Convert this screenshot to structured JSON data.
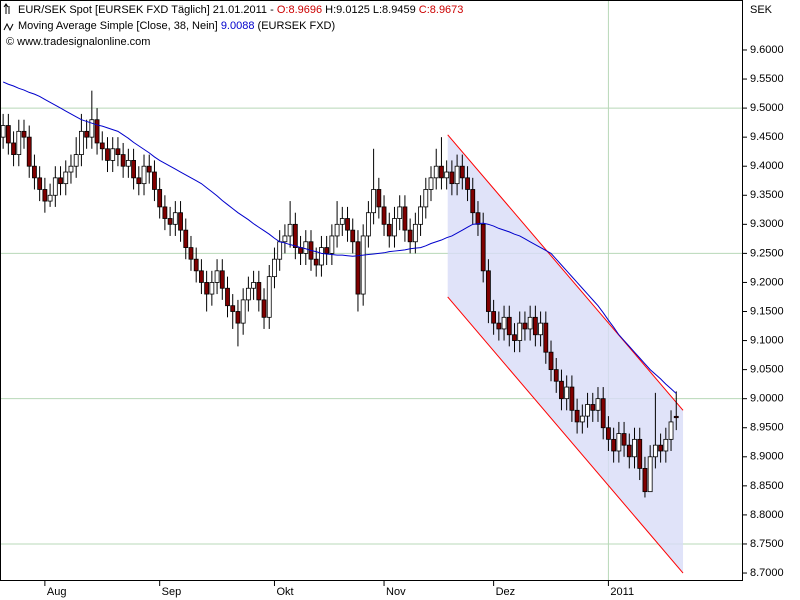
{
  "chart_data": {
    "type": "candlestick",
    "header_line1": "EUR/SEK Spot [EURSEK FXD  Täglich] 21.01.2011 -",
    "header_open": "O:8.9696",
    "header_high_low": "H:9.0125 L:8.9459",
    "header_close": "C:8.9673",
    "ma_label": "Moving Average Simple [Close, 38, Nein]",
    "ma_value": "9.0088",
    "ma_symbol": "(EURSEK FXD)",
    "copyright": "© www.tradesignalonline.com",
    "y_axis_label": "SEK",
    "xlim": [
      -0.6,
      141.6
    ],
    "ylim": [
      8.688,
      9.686
    ],
    "xticks": [
      {
        "value": 8,
        "label": "Aug"
      },
      {
        "value": 30,
        "label": "Sep"
      },
      {
        "value": 52,
        "label": "Okt"
      },
      {
        "value": 73,
        "label": "Nov"
      },
      {
        "value": 94,
        "label": "Dez"
      },
      {
        "value": 116,
        "label": "2011"
      }
    ],
    "yticks": [
      {
        "value": 8.7,
        "label": "8.7000"
      },
      {
        "value": 8.75,
        "label": "8.7500"
      },
      {
        "value": 8.8,
        "label": "8.8000"
      },
      {
        "value": 8.85,
        "label": "8.8500"
      },
      {
        "value": 8.9,
        "label": "8.9000"
      },
      {
        "value": 8.95,
        "label": "8.9500"
      },
      {
        "value": 9.0,
        "label": "9.0000"
      },
      {
        "value": 9.05,
        "label": "9.0500"
      },
      {
        "value": 9.1,
        "label": "9.1000"
      },
      {
        "value": 9.15,
        "label": "9.1500"
      },
      {
        "value": 9.2,
        "label": "9.2000"
      },
      {
        "value": 9.25,
        "label": "9.2500"
      },
      {
        "value": 9.3,
        "label": "9.3000"
      },
      {
        "value": 9.35,
        "label": "9.3500"
      },
      {
        "value": 9.4,
        "label": "9.4000"
      },
      {
        "value": 9.45,
        "label": "9.4500"
      },
      {
        "value": 9.5,
        "label": "9.5000"
      },
      {
        "value": 9.55,
        "label": "9.5500"
      },
      {
        "value": 9.6,
        "label": "9.6000"
      }
    ],
    "ygrid": [
      8.75,
      9.0,
      9.25,
      9.5
    ],
    "xgrid": [
      116
    ],
    "up_color": "#ffffff",
    "down_color": "#800000",
    "open": [
      9.45,
      9.47,
      9.44,
      9.42,
      9.46,
      9.45,
      9.4,
      9.38,
      9.36,
      9.34,
      9.35,
      9.38,
      9.37,
      9.39,
      9.4,
      9.42,
      9.46,
      9.45,
      9.48,
      9.44,
      9.43,
      9.41,
      9.43,
      9.42,
      9.4,
      9.41,
      9.38,
      9.37,
      9.4,
      9.39,
      9.36,
      9.33,
      9.31,
      9.3,
      9.32,
      9.29,
      9.26,
      9.24,
      9.22,
      9.2,
      9.18,
      9.2,
      9.22,
      9.19,
      9.16,
      9.15,
      9.13,
      9.17,
      9.19,
      9.2,
      9.17,
      9.14,
      9.21,
      9.24,
      9.27,
      9.28,
      9.3,
      9.26,
      9.25,
      9.27,
      9.24,
      9.23,
      9.26,
      9.25,
      9.28,
      9.3,
      9.31,
      9.29,
      9.27,
      9.18,
      9.28,
      9.32,
      9.36,
      9.33,
      9.3,
      9.28,
      9.31,
      9.33,
      9.29,
      9.27,
      9.3,
      9.33,
      9.36,
      9.38,
      9.4,
      9.38,
      9.39,
      9.37,
      9.4,
      9.38,
      9.36,
      9.32,
      9.3,
      9.22,
      9.15,
      9.13,
      9.12,
      9.14,
      9.11,
      9.1,
      9.13,
      9.12,
      9.14,
      9.11,
      9.13,
      9.08,
      9.05,
      9.03,
      9.0,
      9.02,
      8.98,
      8.96,
      8.97,
      8.99,
      8.98,
      9.0,
      8.95,
      8.93,
      8.91,
      8.94,
      8.92,
      8.9,
      8.93,
      8.88,
      8.84,
      8.9,
      8.92,
      8.91,
      8.93,
      8.9696
    ],
    "high": [
      9.49,
      9.49,
      9.46,
      9.48,
      9.48,
      9.47,
      9.42,
      9.4,
      9.38,
      9.37,
      9.4,
      9.4,
      9.41,
      9.42,
      9.45,
      9.49,
      9.48,
      9.53,
      9.5,
      9.46,
      9.45,
      9.45,
      9.45,
      9.44,
      9.43,
      9.43,
      9.4,
      9.42,
      9.42,
      9.41,
      9.38,
      9.35,
      9.33,
      9.34,
      9.34,
      9.31,
      9.28,
      9.26,
      9.24,
      9.22,
      9.22,
      9.24,
      9.24,
      9.21,
      9.18,
      9.17,
      9.19,
      9.21,
      9.22,
      9.22,
      9.19,
      9.23,
      9.26,
      9.29,
      9.3,
      9.34,
      9.32,
      9.28,
      9.29,
      9.29,
      9.26,
      9.28,
      9.28,
      9.3,
      9.34,
      9.33,
      9.33,
      9.31,
      9.29,
      9.3,
      9.34,
      9.43,
      9.38,
      9.35,
      9.32,
      9.33,
      9.35,
      9.35,
      9.31,
      9.32,
      9.35,
      9.38,
      9.4,
      9.43,
      9.45,
      9.41,
      9.41,
      9.42,
      9.42,
      9.4,
      9.38,
      9.34,
      9.32,
      9.24,
      9.17,
      9.15,
      9.16,
      9.16,
      9.13,
      9.15,
      9.15,
      9.16,
      9.16,
      9.15,
      9.15,
      9.1,
      9.07,
      9.05,
      9.04,
      9.04,
      9.0,
      8.99,
      9.01,
      9.01,
      9.02,
      9.02,
      8.97,
      8.95,
      8.96,
      8.96,
      8.94,
      8.95,
      8.95,
      8.9,
      8.92,
      9.01,
      8.94,
      8.95,
      8.98,
      9.0125
    ],
    "low": [
      9.43,
      9.42,
      9.4,
      9.4,
      9.43,
      9.38,
      9.36,
      9.34,
      9.32,
      9.33,
      9.33,
      9.35,
      9.35,
      9.37,
      9.38,
      9.4,
      9.43,
      9.43,
      9.42,
      9.41,
      9.39,
      9.39,
      9.4,
      9.38,
      9.38,
      9.36,
      9.35,
      9.35,
      9.37,
      9.34,
      9.31,
      9.29,
      9.28,
      9.28,
      9.27,
      9.24,
      9.22,
      9.2,
      9.18,
      9.15,
      9.16,
      9.18,
      9.17,
      9.14,
      9.12,
      9.09,
      9.11,
      9.15,
      9.17,
      9.15,
      9.12,
      9.12,
      9.19,
      9.22,
      9.25,
      9.26,
      9.24,
      9.23,
      9.23,
      9.22,
      9.21,
      9.21,
      9.23,
      9.23,
      9.26,
      9.28,
      9.27,
      9.25,
      9.15,
      9.16,
      9.26,
      9.3,
      9.31,
      9.28,
      9.26,
      9.26,
      9.29,
      9.27,
      9.25,
      9.25,
      9.28,
      9.31,
      9.34,
      9.36,
      9.36,
      9.36,
      9.35,
      9.35,
      9.36,
      9.34,
      9.3,
      9.28,
      9.2,
      9.13,
      9.11,
      9.1,
      9.1,
      9.09,
      9.08,
      9.08,
      9.1,
      9.1,
      9.09,
      9.09,
      9.06,
      9.03,
      9.01,
      8.98,
      8.98,
      8.96,
      8.94,
      8.94,
      8.95,
      8.96,
      8.96,
      8.93,
      8.91,
      8.89,
      8.89,
      8.9,
      8.88,
      8.88,
      8.86,
      8.83,
      8.84,
      8.88,
      8.89,
      8.89,
      8.91,
      8.9459
    ],
    "close": [
      9.47,
      9.44,
      9.42,
      9.46,
      9.45,
      9.4,
      9.38,
      9.36,
      9.34,
      9.35,
      9.38,
      9.37,
      9.39,
      9.4,
      9.42,
      9.46,
      9.45,
      9.48,
      9.44,
      9.43,
      9.41,
      9.43,
      9.42,
      9.4,
      9.41,
      9.38,
      9.37,
      9.4,
      9.39,
      9.36,
      9.33,
      9.31,
      9.3,
      9.32,
      9.29,
      9.26,
      9.24,
      9.22,
      9.2,
      9.18,
      9.2,
      9.22,
      9.19,
      9.16,
      9.15,
      9.13,
      9.17,
      9.19,
      9.2,
      9.17,
      9.14,
      9.21,
      9.24,
      9.27,
      9.28,
      9.3,
      9.26,
      9.25,
      9.27,
      9.24,
      9.23,
      9.26,
      9.25,
      9.28,
      9.3,
      9.31,
      9.29,
      9.27,
      9.18,
      9.28,
      9.32,
      9.36,
      9.33,
      9.3,
      9.28,
      9.31,
      9.33,
      9.29,
      9.27,
      9.3,
      9.33,
      9.36,
      9.38,
      9.4,
      9.38,
      9.39,
      9.37,
      9.4,
      9.38,
      9.36,
      9.32,
      9.3,
      9.22,
      9.15,
      9.13,
      9.12,
      9.14,
      9.11,
      9.1,
      9.13,
      9.12,
      9.14,
      9.11,
      9.13,
      9.08,
      9.05,
      9.03,
      9.0,
      9.02,
      8.98,
      8.96,
      8.97,
      8.99,
      8.98,
      9.0,
      8.95,
      8.93,
      8.91,
      8.94,
      8.92,
      8.9,
      8.93,
      8.88,
      8.84,
      8.9,
      8.92,
      8.91,
      8.93,
      8.96,
      8.9673
    ],
    "moving_average": {
      "color": "#0000cc",
      "values": [
        9.545,
        9.541,
        9.538,
        9.534,
        9.531,
        9.527,
        9.524,
        9.52,
        9.515,
        9.51,
        9.505,
        9.5,
        9.495,
        9.49,
        9.485,
        9.48,
        9.477,
        9.474,
        9.471,
        9.469,
        9.466,
        9.463,
        9.46,
        9.454,
        9.448,
        9.441,
        9.435,
        9.429,
        9.423,
        9.416,
        9.41,
        9.405,
        9.4,
        9.395,
        9.39,
        9.385,
        9.38,
        9.375,
        9.37,
        9.363,
        9.356,
        9.349,
        9.341,
        9.334,
        9.327,
        9.32,
        9.314,
        9.308,
        9.301,
        9.295,
        9.289,
        9.283,
        9.276,
        9.27,
        9.268,
        9.265,
        9.263,
        9.26,
        9.258,
        9.255,
        9.253,
        9.25,
        9.249,
        9.248,
        9.247,
        9.247,
        9.246,
        9.245,
        9.246,
        9.247,
        9.248,
        9.249,
        9.25,
        9.251,
        9.253,
        9.254,
        9.255,
        9.256,
        9.258,
        9.259,
        9.26,
        9.263,
        9.267,
        9.27,
        9.273,
        9.277,
        9.28,
        9.285,
        9.29,
        9.295,
        9.3,
        9.301,
        9.302,
        9.3,
        9.297,
        9.293,
        9.29,
        9.287,
        9.283,
        9.28,
        9.275,
        9.27,
        9.265,
        9.26,
        9.255,
        9.25,
        9.24,
        9.23,
        9.22,
        9.21,
        9.2,
        9.19,
        9.18,
        9.17,
        9.16,
        9.148,
        9.135,
        9.123,
        9.11,
        9.1,
        9.09,
        9.08,
        9.07,
        9.06,
        9.05,
        9.042,
        9.034,
        9.025,
        9.017,
        9.0088
      ]
    },
    "trend_channel": {
      "line_color": "#ff0000",
      "fill_color": "#d8dcf8",
      "upper": {
        "x": [
          85.2,
          130.3
        ],
        "y": [
          9.454,
          8.98
        ]
      },
      "lower": {
        "x": [
          85.2,
          130.3
        ],
        "y": [
          9.175,
          8.7
        ]
      }
    }
  }
}
